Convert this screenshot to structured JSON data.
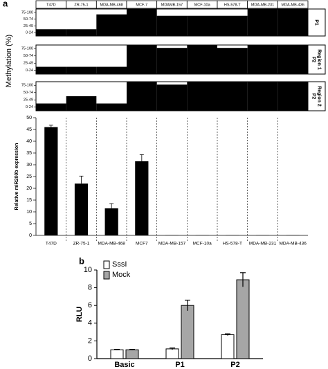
{
  "chart_data": [
    {
      "type": "methylation",
      "panel": "a",
      "ylabel": "Methylation (%)",
      "categories": [
        "T47D",
        "ZR-75-1",
        "MDA-MB-468",
        "MCF-7",
        "MDAMB-157",
        "MCF-10a",
        "HS-578-T",
        "MDA-MB-231",
        "MDA-MB-436"
      ],
      "ylim": [
        0,
        4
      ],
      "yticks": [
        {
          "value": 0.5,
          "label": "0-24"
        },
        {
          "value": 1.5,
          "label": "25-49"
        },
        {
          "value": 2.5,
          "label": "50-74"
        },
        {
          "value": 3.5,
          "label": "75-100"
        }
      ],
      "color": "#000000",
      "panels": [
        {
          "label": [
            "P1"
          ],
          "values": [
            1,
            1,
            3.2,
            4,
            3,
            3,
            3,
            4,
            4
          ]
        },
        {
          "label": [
            "P2",
            "Region 1"
          ],
          "values": [
            1,
            1,
            1,
            4,
            3.6,
            4,
            3.6,
            4,
            4
          ]
        },
        {
          "label": [
            "P2",
            "Region 2"
          ],
          "values": [
            1,
            2,
            1,
            4,
            3.6,
            4,
            4,
            4,
            4
          ]
        }
      ]
    },
    {
      "type": "bar",
      "ylabel": "Relative miR200b expression",
      "categories": [
        "T47D",
        "ZR-75-1",
        "MDA-MB-468",
        "MCF7",
        "MDA-MB-157",
        "MCF-10a",
        "HS-578-T",
        "MDA-MB-231",
        "MDA-MB-436"
      ],
      "values": [
        46,
        22,
        11.5,
        31.5,
        0.1,
        0.1,
        0.1,
        0.1,
        0.1
      ],
      "errors": [
        0.8,
        3.2,
        2,
        2.8,
        0,
        0,
        0,
        0,
        0
      ],
      "color": "#000000",
      "ylim": [
        0,
        50
      ],
      "yticks": [
        0,
        5,
        10,
        15,
        20,
        25,
        30,
        35,
        40,
        45,
        50
      ]
    },
    {
      "type": "grouped-bar",
      "panel": "b",
      "ylabel": "RLU",
      "categories": [
        "Basic",
        "P1",
        "P2"
      ],
      "series": [
        {
          "name": "SssI",
          "color": "#ffffff",
          "values": [
            1,
            1.1,
            2.7
          ],
          "errors": [
            0.05,
            0.1,
            0.1
          ]
        },
        {
          "name": "Mock",
          "color": "#a6a6a6",
          "values": [
            1,
            6,
            8.9
          ],
          "errors": [
            0.05,
            0.6,
            0.8
          ]
        }
      ],
      "ylim": [
        0,
        10
      ],
      "yticks": [
        0,
        2,
        4,
        6,
        8,
        10
      ]
    }
  ]
}
